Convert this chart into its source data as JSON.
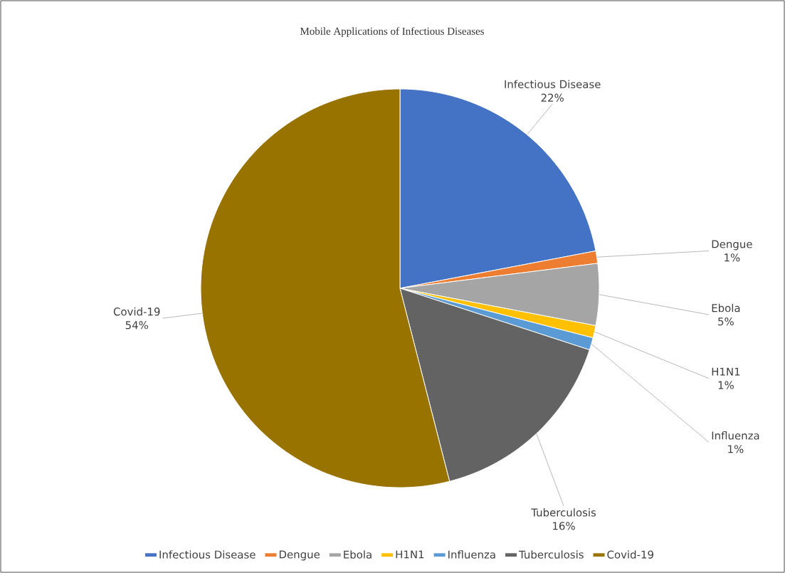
{
  "chart_data": {
    "type": "pie",
    "title": "Mobile Applications of Infectious Diseases",
    "categories": [
      "Infectious Disease",
      "Dengue",
      "Ebola",
      "H1N1",
      "Influenza",
      "Tuberculosis",
      "Covid-19"
    ],
    "values": [
      22,
      1,
      5,
      1,
      1,
      16,
      54
    ],
    "value_labels": [
      "22%",
      "1%",
      "5%",
      "1%",
      "1%",
      "16%",
      "54%"
    ],
    "colors": [
      "#4472c4",
      "#ed7d31",
      "#a5a5a5",
      "#ffc000",
      "#5b9bd5",
      "#636363",
      "#997300"
    ],
    "legend": "bottom"
  }
}
